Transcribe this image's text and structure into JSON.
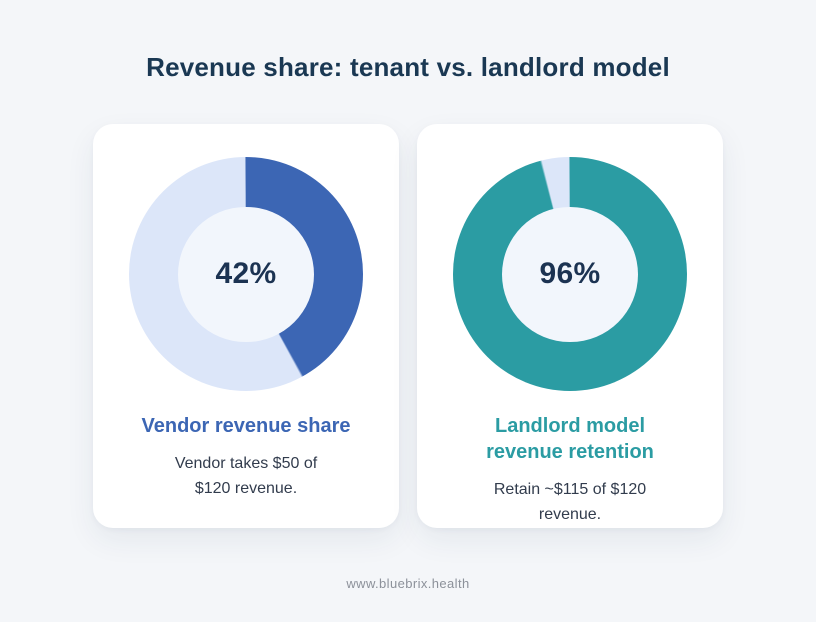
{
  "page": {
    "title": "Revenue share: tenant vs. landlord model",
    "footer": "www.bluebrix.health"
  },
  "colors": {
    "background": "#f4f6f9",
    "card_background": "#ffffff",
    "title_navy": "#1a3853",
    "percent_navy": "#1c3352",
    "description_slate": "#323c4d",
    "footer_gray": "#8c919a",
    "donut_hole": "#f2f6fc",
    "blue_accent": "#3c66b4",
    "teal_accent": "#2b9ca3",
    "track_light_blue": "#dce6f9"
  },
  "chart_data": [
    {
      "type": "pie",
      "subtype": "donut",
      "title": "Vendor revenue share",
      "labels": [
        "Vendor share",
        "Remainder"
      ],
      "values": [
        42,
        58
      ],
      "colors": [
        "#3c66b4",
        "#dce6f9"
      ],
      "center_label": "42%",
      "annotation": "Vendor takes $50 of $120 revenue.",
      "start_angle_deg": 0,
      "direction": "clockwise",
      "legend": "none"
    },
    {
      "type": "pie",
      "subtype": "donut",
      "title": "Landlord model revenue retention",
      "labels": [
        "Retained",
        "Not retained"
      ],
      "values": [
        96,
        4
      ],
      "colors": [
        "#2b9ca3",
        "#dce6f9"
      ],
      "center_label": "96%",
      "annotation": "Retain ~$115 of $120 revenue.",
      "start_angle_deg": 0,
      "direction": "clockwise",
      "legend": "none"
    }
  ],
  "cards": [
    {
      "value": 42,
      "percent_label": "42%",
      "title": "Vendor revenue share",
      "description": "Vendor takes $50 of $120 revenue.",
      "accent": "#3c66b4",
      "track": "#dce6f9"
    },
    {
      "value": 96,
      "percent_label": "96%",
      "title": "Landlord model revenue retention",
      "description": "Retain ~$115 of $120 revenue.",
      "accent": "#2b9ca3",
      "track": "#dce6f9"
    }
  ]
}
